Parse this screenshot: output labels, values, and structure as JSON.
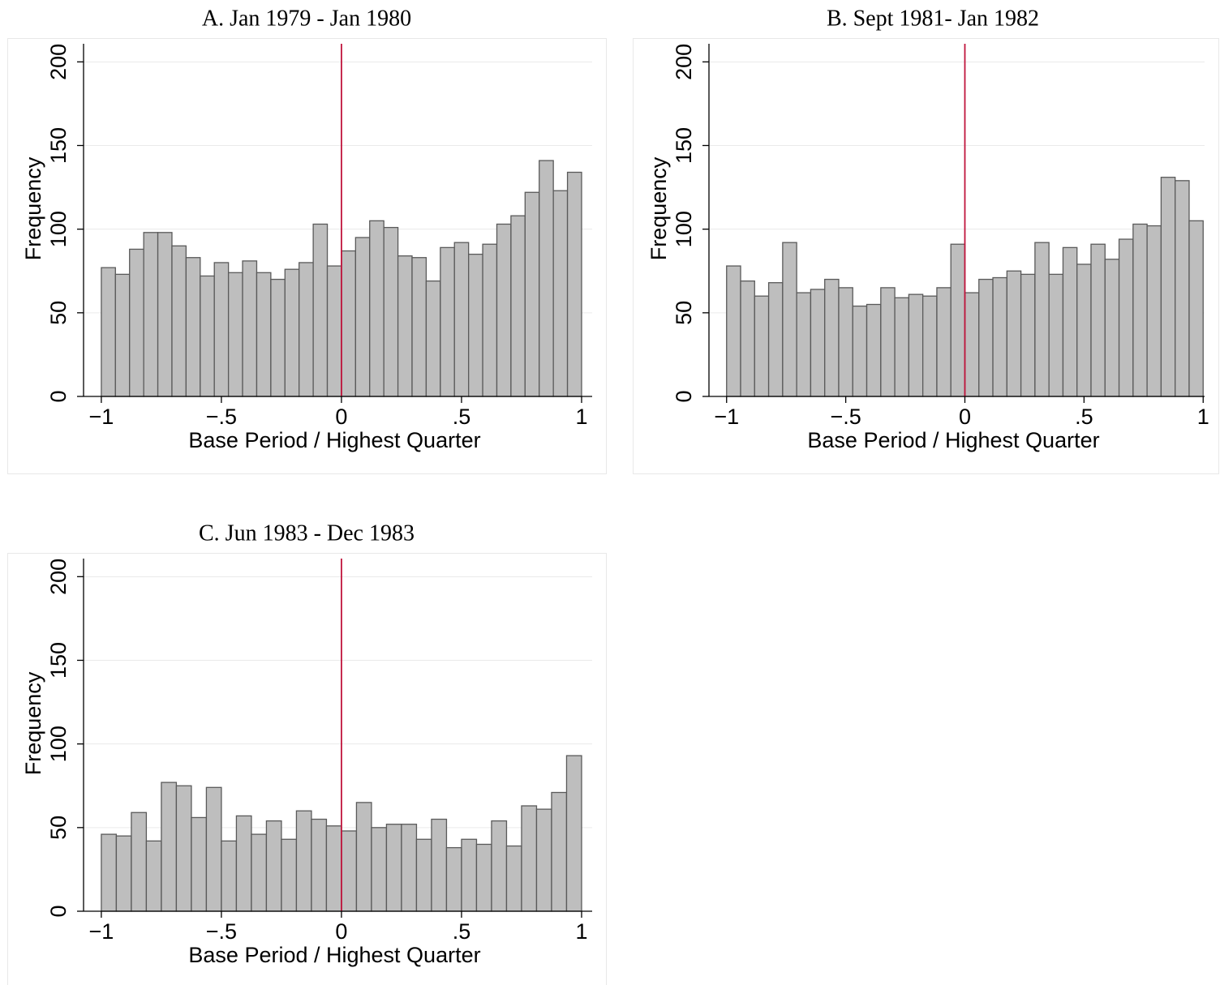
{
  "chart_data": [
    {
      "type": "histogram",
      "title": "A. Jan 1979 - Jan 1980",
      "xlabel": "Base Period / Highest Quarter",
      "ylabel": "Frequency",
      "bins": [
        -1,
        -0.9412,
        -0.8824,
        -0.8235,
        -0.7647,
        -0.7059,
        -0.6471,
        -0.5882,
        -0.5294,
        -0.4706,
        -0.4118,
        -0.3529,
        -0.2941,
        -0.2353,
        -0.1765,
        -0.1176,
        -0.0588,
        0,
        0.0588,
        0.1176,
        0.1765,
        0.2353,
        0.2941,
        0.3529,
        0.4118,
        0.4706,
        0.5294,
        0.5882,
        0.6471,
        0.7059,
        0.7647,
        0.8235,
        0.8824,
        0.9412,
        1
      ],
      "values": [
        77,
        73,
        88,
        98,
        98,
        90,
        83,
        72,
        80,
        74,
        81,
        74,
        70,
        76,
        80,
        103,
        78,
        87,
        95,
        105,
        101,
        84,
        83,
        69,
        89,
        92,
        85,
        91,
        103,
        108,
        122,
        141,
        123,
        134
      ],
      "color": "#bebebe",
      "vline": 0,
      "vline_color": "#c0143c",
      "xlim": [
        -1.074,
        1.044
      ],
      "xticks": [
        {
          "value": -1,
          "label": "−1"
        },
        {
          "value": -0.5,
          "label": "−.5"
        },
        0,
        {
          "value": 0.5,
          "label": ".5"
        },
        1
      ],
      "ylim": [
        0,
        205
      ],
      "yticks": [
        0,
        50,
        100,
        150,
        200
      ],
      "grid": true
    },
    {
      "type": "histogram",
      "title": "B. Sept 1981- Jan 1982",
      "xlabel": "Base Period / Highest Quarter",
      "ylabel": "Frequency",
      "bins": [
        -1,
        -0.9412,
        -0.8824,
        -0.8235,
        -0.7647,
        -0.7059,
        -0.6471,
        -0.5882,
        -0.5294,
        -0.4706,
        -0.4118,
        -0.3529,
        -0.2941,
        -0.2353,
        -0.1765,
        -0.1176,
        -0.0588,
        0,
        0.0588,
        0.1176,
        0.1765,
        0.2353,
        0.2941,
        0.3529,
        0.4118,
        0.4706,
        0.5294,
        0.5882,
        0.6471,
        0.7059,
        0.7647,
        0.8235,
        0.8824,
        0.9412,
        1
      ],
      "values": [
        78,
        69,
        60,
        68,
        92,
        62,
        64,
        70,
        65,
        54,
        55,
        65,
        59,
        61,
        60,
        65,
        91,
        62,
        70,
        71,
        75,
        73,
        92,
        73,
        89,
        79,
        91,
        82,
        94,
        103,
        102,
        131,
        129,
        105
      ],
      "color": "#bebebe",
      "vline": 0,
      "vline_color": "#c0143c",
      "xlim": [
        -1.074,
        1.006
      ],
      "xticks": [
        {
          "value": -1,
          "label": "−1"
        },
        {
          "value": -0.5,
          "label": "−.5"
        },
        0,
        {
          "value": 0.5,
          "label": ".5"
        },
        1
      ],
      "ylim": [
        0,
        205
      ],
      "yticks": [
        0,
        50,
        100,
        150,
        200
      ],
      "grid": true
    },
    {
      "type": "histogram",
      "title": "C. Jun 1983 - Dec 1983",
      "xlabel": "Base Period / Highest Quarter",
      "ylabel": "Frequency",
      "bins": [
        -1,
        -0.9375,
        -0.875,
        -0.8125,
        -0.75,
        -0.6875,
        -0.625,
        -0.5625,
        -0.5,
        -0.4375,
        -0.375,
        -0.3125,
        -0.25,
        -0.1875,
        -0.125,
        -0.0625,
        0,
        0.0625,
        0.125,
        0.1875,
        0.25,
        0.3125,
        0.375,
        0.4375,
        0.5,
        0.5625,
        0.625,
        0.6875,
        0.75,
        0.8125,
        0.875,
        0.9375,
        1
      ],
      "values": [
        46,
        45,
        59,
        42,
        77,
        75,
        56,
        74,
        42,
        57,
        46,
        54,
        43,
        60,
        55,
        51,
        48,
        65,
        50,
        52,
        52,
        43,
        55,
        38,
        43,
        40,
        54,
        39,
        63,
        61,
        71,
        93
      ],
      "color": "#bebebe",
      "vline": 0,
      "vline_color": "#c0143c",
      "xlim": [
        -1.074,
        1.044
      ],
      "xticks": [
        {
          "value": -1,
          "label": "−1"
        },
        {
          "value": -0.5,
          "label": "−.5"
        },
        0,
        {
          "value": 0.5,
          "label": ".5"
        },
        1
      ],
      "ylim": [
        0,
        205
      ],
      "yticks": [
        0,
        50,
        100,
        150,
        200
      ],
      "grid": true
    }
  ]
}
